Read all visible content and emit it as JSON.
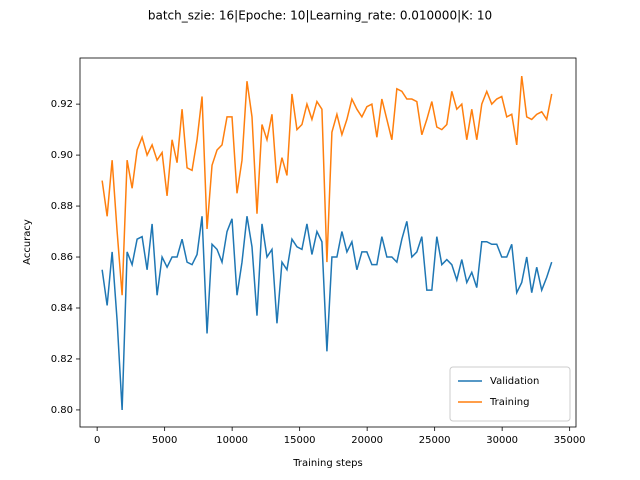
{
  "chart_data": {
    "type": "line",
    "title": "batch_szie: 16|Epoche: 10|Learning_rate: 0.010000|K: 10",
    "x_label": "Training steps",
    "y_label": "Accuracy",
    "x": [
      370,
      740,
      1110,
      1480,
      1850,
      2220,
      2590,
      2960,
      3330,
      3700,
      4070,
      4440,
      4810,
      5180,
      5550,
      5920,
      6290,
      6660,
      7030,
      7400,
      7770,
      8140,
      8510,
      8880,
      9250,
      9620,
      9990,
      10360,
      10730,
      11100,
      11470,
      11840,
      12210,
      12580,
      12950,
      13320,
      13690,
      14060,
      14430,
      14800,
      15170,
      15540,
      15910,
      16280,
      16650,
      17020,
      17390,
      17760,
      18130,
      18500,
      18870,
      19240,
      19610,
      19980,
      20350,
      20720,
      21090,
      21460,
      21830,
      22200,
      22570,
      22940,
      23310,
      23680,
      24050,
      24420,
      24790,
      25160,
      25530,
      25900,
      26270,
      26640,
      27010,
      27380,
      27750,
      28120,
      28490,
      28860,
      29230,
      29600,
      29970,
      30340,
      30710,
      31080,
      31450,
      31820,
      32190,
      32560,
      32930,
      33300,
      33670
    ],
    "series": [
      {
        "name": "Validation",
        "color": "#1f77b4",
        "values": [
          0.855,
          0.841,
          0.862,
          0.835,
          0.8,
          0.862,
          0.857,
          0.867,
          0.868,
          0.855,
          0.873,
          0.845,
          0.86,
          0.856,
          0.86,
          0.86,
          0.867,
          0.858,
          0.857,
          0.861,
          0.876,
          0.83,
          0.865,
          0.863,
          0.858,
          0.87,
          0.875,
          0.845,
          0.858,
          0.876,
          0.864,
          0.837,
          0.873,
          0.86,
          0.863,
          0.834,
          0.858,
          0.855,
          0.867,
          0.864,
          0.863,
          0.873,
          0.861,
          0.87,
          0.866,
          0.823,
          0.86,
          0.86,
          0.87,
          0.862,
          0.866,
          0.855,
          0.862,
          0.862,
          0.857,
          0.857,
          0.868,
          0.86,
          0.86,
          0.858,
          0.867,
          0.874,
          0.86,
          0.862,
          0.868,
          0.847,
          0.847,
          0.868,
          0.857,
          0.859,
          0.857,
          0.851,
          0.859,
          0.85,
          0.854,
          0.848,
          0.866,
          0.866,
          0.865,
          0.865,
          0.86,
          0.86,
          0.865,
          0.846,
          0.85,
          0.86,
          0.846,
          0.856,
          0.847,
          0.852,
          0.858
        ]
      },
      {
        "name": "Training",
        "color": "#ff7f0e",
        "values": [
          0.89,
          0.876,
          0.898,
          0.87,
          0.845,
          0.898,
          0.887,
          0.902,
          0.907,
          0.9,
          0.904,
          0.898,
          0.901,
          0.884,
          0.906,
          0.897,
          0.918,
          0.895,
          0.894,
          0.906,
          0.923,
          0.871,
          0.896,
          0.902,
          0.904,
          0.915,
          0.915,
          0.885,
          0.898,
          0.929,
          0.915,
          0.877,
          0.912,
          0.906,
          0.916,
          0.889,
          0.899,
          0.892,
          0.924,
          0.91,
          0.912,
          0.92,
          0.914,
          0.921,
          0.918,
          0.858,
          0.909,
          0.916,
          0.908,
          0.914,
          0.922,
          0.918,
          0.915,
          0.919,
          0.92,
          0.907,
          0.922,
          0.914,
          0.906,
          0.926,
          0.925,
          0.922,
          0.922,
          0.921,
          0.908,
          0.914,
          0.921,
          0.911,
          0.91,
          0.912,
          0.925,
          0.918,
          0.92,
          0.906,
          0.918,
          0.906,
          0.92,
          0.925,
          0.92,
          0.922,
          0.923,
          0.915,
          0.916,
          0.904,
          0.931,
          0.915,
          0.914,
          0.916,
          0.917,
          0.914,
          0.924
        ]
      }
    ],
    "xlim": [
      -1270,
      35470
    ],
    "ylim": [
      0.7933,
      0.9381
    ],
    "xticks": [
      0,
      5000,
      10000,
      15000,
      20000,
      25000,
      30000,
      35000
    ],
    "yticks": [
      {
        "value": 0.8,
        "label": "0.80"
      },
      0.82,
      0.84,
      0.86,
      0.88,
      {
        "value": 0.9,
        "label": "0.90"
      },
      0.92
    ],
    "legend": "lower right",
    "grid": false
  }
}
